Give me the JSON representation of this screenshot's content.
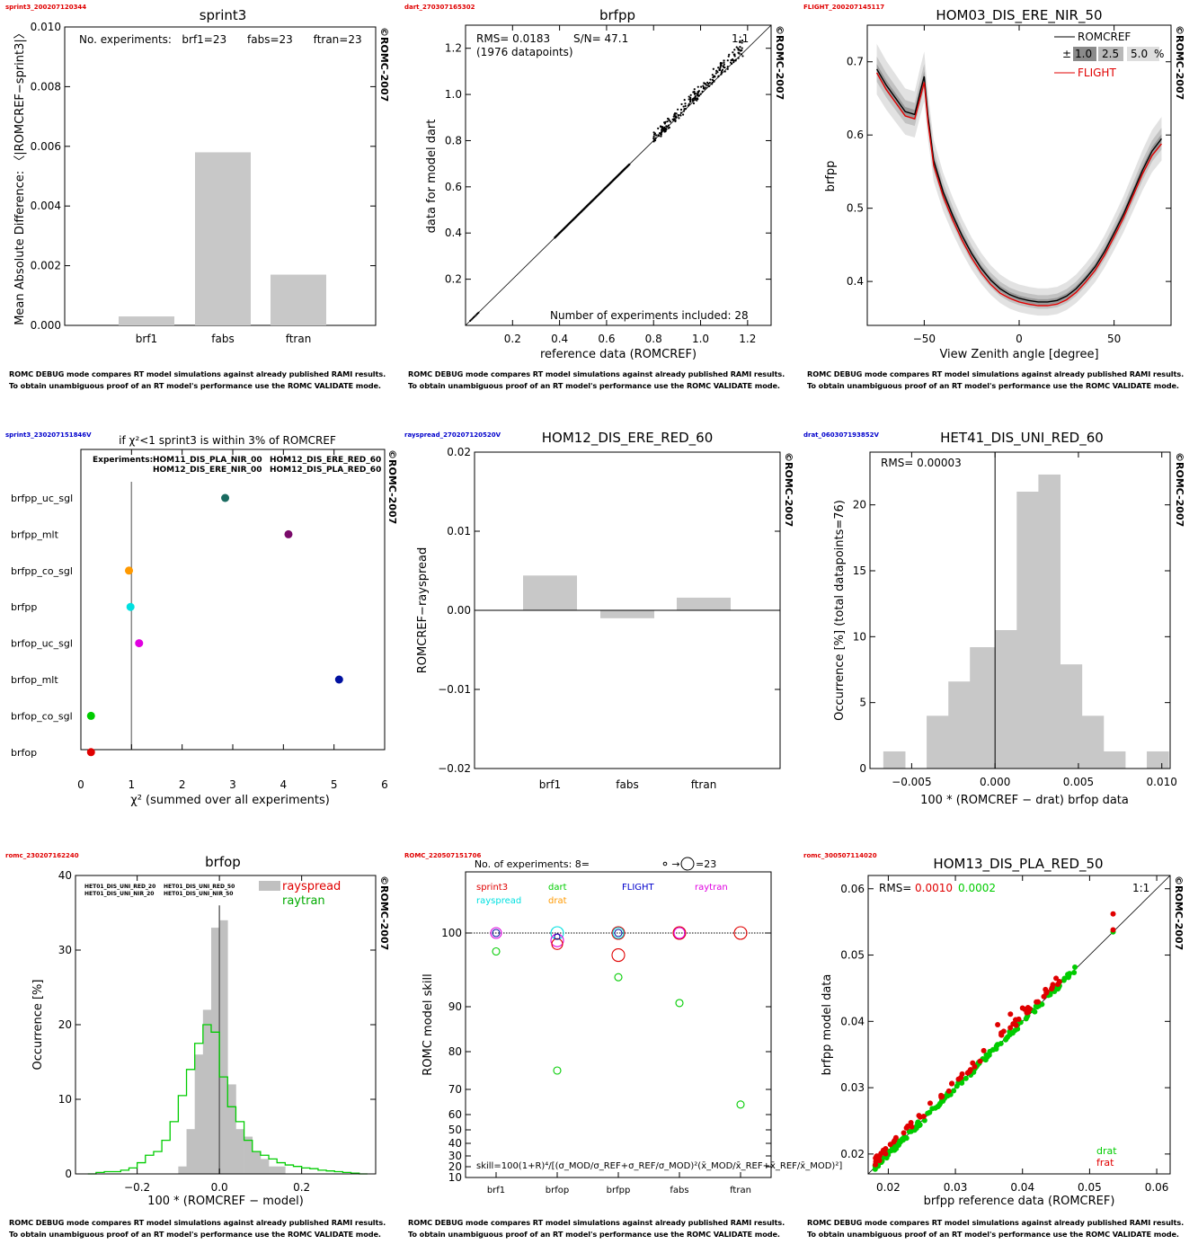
{
  "footer": {
    "line1": "ROMC DEBUG mode compares RT model simulations against already published RAMI results.",
    "line2": "To obtain unambiguous proof of an RT model's performance use the ROMC VALIDATE mode."
  },
  "watermark": "©ROMC-2007",
  "colors": {
    "bar": "#c8c8c8",
    "red": "#e00000",
    "green": "#00cc00",
    "blue": "#0000cc",
    "magenta": "#e000e0",
    "cyan": "#00e0e0",
    "orange": "#ff9900",
    "teal": "#1a6b60",
    "purple": "#7a0a6a",
    "navy": "#0010a0"
  },
  "chart_data": [
    {
      "id": "p1",
      "tag": "sprint3_200207120344",
      "type": "bar",
      "title": "sprint3",
      "ylabel": "Mean Absolute Difference: 〈|ROMCREF−sprint3|〉",
      "note": "No. experiments:   brf1=23      fabs=23      ftran=23",
      "categories": [
        "brf1",
        "fabs",
        "ftran"
      ],
      "values": [
        0.0003,
        0.0058,
        0.0017
      ],
      "ylim": [
        0,
        0.01
      ],
      "yticks": [
        "0.000",
        "0.002",
        "0.004",
        "0.006",
        "0.008",
        "0.010"
      ]
    },
    {
      "id": "p2",
      "tag": "dart_270307165302",
      "type": "scatter",
      "title": "brfpp",
      "xlabel": "reference data (ROMCREF)",
      "ylabel": "data for model dart",
      "rms": "RMS= 0.0183",
      "sn": "S/N= 47.1",
      "npoints": "(1976 datapoints)",
      "oneone": "1:1",
      "nexp": "Number of experiments included:  28",
      "xlim": [
        0,
        1.3
      ],
      "ylim": [
        0,
        1.3
      ],
      "xticks": [
        "0.2",
        "0.4",
        "0.6",
        "0.8",
        "1.0",
        "1.2"
      ],
      "yticks": [
        "0.2",
        "0.4",
        "0.6",
        "0.8",
        "1.0",
        "1.2"
      ]
    },
    {
      "id": "p3",
      "tag": "FLIGHT_200207145117",
      "type": "line",
      "title": "HOM03_DIS_ERE_NIR_50",
      "xlabel": "View Zenith angle [degree]",
      "ylabel": "brfpp",
      "legend": {
        "ref": "ROMCREF",
        "pm": "±",
        "b1": "1.0",
        "b2": "2.5",
        "b3": "5.0",
        "pct": "%",
        "model": "FLIGHT"
      },
      "xlim": [
        -80,
        80
      ],
      "ylim": [
        0.34,
        0.75
      ],
      "xticks": [
        "−50",
        "0",
        "50"
      ],
      "yticks": [
        "0.4",
        "0.5",
        "0.6",
        "0.7"
      ],
      "x": [
        -75,
        -70,
        -65,
        -60,
        -55,
        -52,
        -50,
        -48,
        -45,
        -40,
        -35,
        -30,
        -25,
        -20,
        -15,
        -10,
        -5,
        0,
        5,
        10,
        15,
        20,
        25,
        30,
        35,
        40,
        45,
        50,
        55,
        60,
        65,
        70,
        75
      ],
      "ref": [
        0.69,
        0.668,
        0.65,
        0.632,
        0.628,
        0.66,
        0.68,
        0.625,
        0.565,
        0.522,
        0.49,
        0.462,
        0.438,
        0.418,
        0.402,
        0.39,
        0.382,
        0.377,
        0.374,
        0.372,
        0.372,
        0.374,
        0.38,
        0.39,
        0.404,
        0.42,
        0.441,
        0.466,
        0.492,
        0.522,
        0.552,
        0.578,
        0.595
      ],
      "model": [
        0.685,
        0.662,
        0.644,
        0.626,
        0.622,
        0.652,
        0.672,
        0.617,
        0.558,
        0.516,
        0.484,
        0.456,
        0.432,
        0.412,
        0.396,
        0.384,
        0.377,
        0.372,
        0.369,
        0.367,
        0.367,
        0.369,
        0.375,
        0.385,
        0.399,
        0.415,
        0.436,
        0.461,
        0.487,
        0.517,
        0.547,
        0.572,
        0.588
      ]
    },
    {
      "id": "p4",
      "tag": "sprint3_230207151846V",
      "type": "scatter",
      "title": "if χ²<1 sprint3 is within 3% of ROMCREF",
      "xlabel": "χ² (summed over all experiments)",
      "experiments_label": "Experiments:",
      "experiments": [
        "HOM11_DIS_PLA_NIR_00",
        "HOM12_DIS_ERE_RED_60",
        "HOM12_DIS_ERE_NIR_00",
        "HOM12_DIS_PLA_RED_60"
      ],
      "categories": [
        "brfpp_uc_sgl",
        "brfpp_mlt",
        "brfpp_co_sgl",
        "brfpp",
        "brfop_uc_sgl",
        "brfop_mlt",
        "brfop_co_sgl",
        "brfop"
      ],
      "values": [
        2.85,
        4.1,
        0.95,
        0.98,
        1.15,
        5.1,
        0.2,
        0.2
      ],
      "point_colors": [
        "#1a6b60",
        "#7a0a6a",
        "#ff9900",
        "#00e0e0",
        "#e000e0",
        "#0010a0",
        "#00cc00",
        "#e00000"
      ],
      "xlim": [
        0,
        6
      ],
      "xticks": [
        "0",
        "1",
        "2",
        "3",
        "4",
        "5",
        "6"
      ]
    },
    {
      "id": "p5",
      "tag": "rayspread_270207120520V",
      "type": "bar",
      "title": "HOM12_DIS_ERE_RED_60",
      "ylabel": "ROMCREF−rayspread",
      "categories": [
        "brf1",
        "fabs",
        "ftran"
      ],
      "values": [
        0.0044,
        -0.001,
        0.0016
      ],
      "ylim": [
        -0.02,
        0.02
      ],
      "yticks": [
        "−0.02",
        "−0.01",
        "0.00",
        "0.01",
        "0.02"
      ]
    },
    {
      "id": "p6",
      "tag": "drat_060307193852V",
      "type": "bar",
      "title": "HET41_DIS_UNI_RED_60",
      "xlabel": "100 * (ROMCREF − drat) brfop data",
      "ylabel": "Occurrence [%]   (total datapoints=76)",
      "rms": "RMS= 0.00003",
      "bin_edges": [
        -0.0065,
        -0.0052,
        -0.0039,
        -0.0026,
        -0.0013,
        0.0,
        0.0013,
        0.0026,
        0.0039,
        0.0052,
        0.0065,
        0.0078,
        0.0091,
        0.0104
      ],
      "values": [
        1.3,
        0,
        1.3,
        4,
        6.6,
        9.2,
        10.5,
        21,
        22.3,
        7.9,
        4,
        1.3,
        0,
        1.3
      ],
      "bin_lefts": [
        -0.0072,
        -0.0059,
        -0.0046,
        -0.0033,
        -0.002,
        -0.0007,
        0.0,
        0.0013,
        0.0026,
        0.0039,
        0.0052,
        0.0065,
        0.0078,
        0.0091
      ],
      "xlim": [
        -0.0075,
        0.0105
      ],
      "ylim": [
        0,
        24
      ],
      "xticks": [
        "−0.005",
        "0.000",
        "0.005",
        "0.010"
      ],
      "yticks": [
        "0",
        "5",
        "10",
        "15",
        "20"
      ]
    },
    {
      "id": "p7",
      "tag": "romc_230207162240",
      "type": "bar",
      "title": "brfop",
      "xlabel": "100 * (ROMCREF − model)",
      "ylabel": "Occurrence [%]",
      "legend": [
        "rayspread",
        "raytran"
      ],
      "experiments": [
        "HET01_DIS_UNI_RED_20",
        "HET01_DIS_UNI_RED_50",
        "HET01_DIS_UNI_NIR_20",
        "HET01_DIS_UNI_NIR_50"
      ],
      "xlim": [
        -0.35,
        0.38
      ],
      "ylim": [
        0,
        40
      ],
      "xticks": [
        "−0.2",
        "0.0",
        "0.2"
      ],
      "yticks": [
        "0",
        "10",
        "20",
        "30",
        "40"
      ],
      "bin_lefts": [
        -0.1,
        -0.08,
        -0.06,
        -0.04,
        -0.02,
        0.0,
        0.02,
        0.04,
        0.06,
        0.08,
        0.1,
        0.12,
        0.14
      ],
      "rayspread": [
        1,
        6,
        16,
        22,
        33,
        34,
        12,
        6,
        5,
        3,
        2,
        1,
        1
      ],
      "raytran_x": [
        -0.32,
        -0.3,
        -0.28,
        -0.26,
        -0.24,
        -0.22,
        -0.2,
        -0.18,
        -0.16,
        -0.14,
        -0.12,
        -0.1,
        -0.08,
        -0.06,
        -0.04,
        -0.02,
        0.0,
        0.02,
        0.04,
        0.06,
        0.08,
        0.1,
        0.12,
        0.14,
        0.16,
        0.18,
        0.2,
        0.22,
        0.24,
        0.26,
        0.28,
        0.3,
        0.32,
        0.34
      ],
      "raytran": [
        0,
        0.2,
        0.3,
        0.3,
        0.5,
        0.8,
        1.5,
        2.5,
        3,
        4.5,
        7,
        10.5,
        14,
        17.5,
        20,
        19,
        13,
        9,
        7,
        4.5,
        3,
        2.5,
        2,
        1.5,
        1.2,
        1,
        0.8,
        0.7,
        0.5,
        0.4,
        0.3,
        0.2,
        0.1,
        0
      ]
    },
    {
      "id": "p8",
      "tag": "ROMC_220507151706",
      "type": "scatter",
      "title": "No. of experiments: 8=",
      "title_tail": "=23",
      "arrow": "→",
      "ylabel": "ROMC model skill",
      "formula": "skill=100(1+R)⁴/[(σ_MOD/σ_REF+σ_REF/σ_MOD)²(x̄_MOD/x̄_REF+x̄_REF/x̄_MOD)²]",
      "models": [
        "sprint3",
        "dart",
        "FLIGHT",
        "raytran",
        "rayspread",
        "drat"
      ],
      "categories": [
        "brf1",
        "brfop",
        "brfpp",
        "fabs",
        "ftran"
      ],
      "yticks": [
        "10",
        "20",
        "30",
        "40",
        "50",
        "60",
        "70",
        "80",
        "90",
        "100"
      ],
      "ylim": [
        10,
        100
      ]
    },
    {
      "id": "p9",
      "tag": "romc_300507114020",
      "type": "scatter",
      "title": "HOM13_DIS_PLA_RED_50",
      "xlabel": "brfpp reference data (ROMCREF)",
      "ylabel": "brfpp model data",
      "rms_label": "RMS=",
      "rms1": "0.0010",
      "rms2": "0.0002",
      "oneone": "1:1",
      "legend": [
        "drat",
        "frat"
      ],
      "xlim": [
        0.017,
        0.062
      ],
      "ylim": [
        0.017,
        0.062
      ],
      "xticks": [
        "0.02",
        "0.03",
        "0.04",
        "0.05",
        "0.06"
      ],
      "yticks": [
        "0.02",
        "0.03",
        "0.04",
        "0.05",
        "0.06"
      ]
    }
  ]
}
